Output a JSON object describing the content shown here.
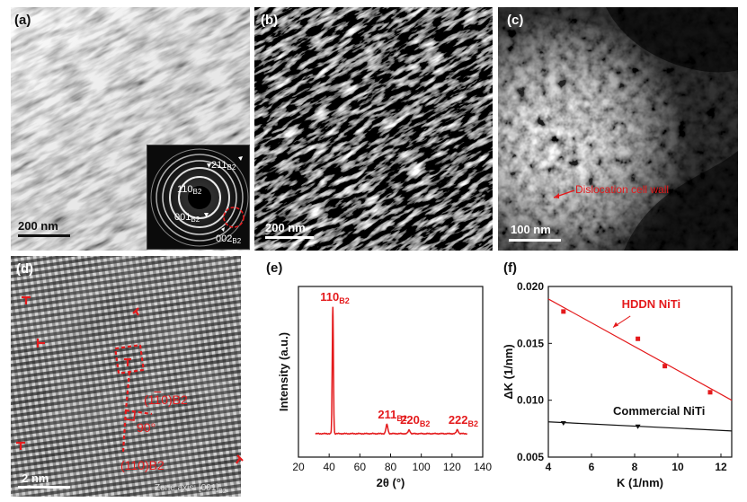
{
  "panels": {
    "a": {
      "label": "(a)",
      "scalebar": "200 nm",
      "saed": {
        "labels": [
          "110",
          "211",
          "001",
          "002"
        ],
        "sub": "B2"
      }
    },
    "b": {
      "label": "(b)",
      "scalebar": "200 nm"
    },
    "c": {
      "label": "(c)",
      "scalebar": "100 nm",
      "annotation": "Dislocation cell wall"
    },
    "d": {
      "label": "(d)",
      "scalebar": "2 nm",
      "zone_axis_prefix": "Zone axis: [001]",
      "zone_axis_sub": "B2",
      "plane1": "(1",
      "plane1_bar": "1",
      "plane1_end": "0)B2",
      "plane2": "(110)B2",
      "angle": "90°"
    }
  },
  "chart_data": [
    {
      "type": "line",
      "panel": "(e)",
      "xlabel": "2θ (°)",
      "ylabel": "Intensity (a.u.)",
      "xlim": [
        20,
        140
      ],
      "xticks": [
        20,
        40,
        60,
        80,
        100,
        120,
        140
      ],
      "color": "#e41a1c",
      "peaks": [
        {
          "x": 42.4,
          "height": 1.0,
          "label": "110",
          "sub": "B2"
        },
        {
          "x": 77.6,
          "height": 0.07,
          "label": "211",
          "sub": "B2"
        },
        {
          "x": 92.1,
          "height": 0.028,
          "label": "220",
          "sub": "B2"
        },
        {
          "x": 123.5,
          "height": 0.03,
          "label": "222",
          "sub": "B2"
        }
      ]
    },
    {
      "type": "scatter",
      "panel": "(f)",
      "xlabel": "K (1/nm)",
      "ylabel": "ΔK (1/nm)",
      "xlim": [
        4,
        12.5
      ],
      "ylim": [
        0.005,
        0.02
      ],
      "xticks": [
        4,
        6,
        8,
        10,
        12
      ],
      "yticks": [
        0.005,
        0.01,
        0.015,
        0.02
      ],
      "ytick_labels": [
        "0.005",
        "0.010",
        "0.015",
        "0.020"
      ],
      "series": [
        {
          "name": "HDDN NiTi",
          "color": "#e41a1c",
          "marker": "square",
          "x": [
            4.7,
            8.15,
            9.4,
            11.5
          ],
          "y": [
            0.0178,
            0.0154,
            0.013,
            0.0107
          ],
          "fit": [
            [
              4,
              0.0189
            ],
            [
              12.5,
              0.01
            ]
          ]
        },
        {
          "name": "Commercial NiTi",
          "color": "#111111",
          "marker": "triangle",
          "x": [
            4.7,
            8.15
          ],
          "y": [
            0.008,
            0.0077
          ],
          "fit": [
            [
              4,
              0.0081
            ],
            [
              12.5,
              0.0073
            ]
          ]
        }
      ]
    }
  ]
}
